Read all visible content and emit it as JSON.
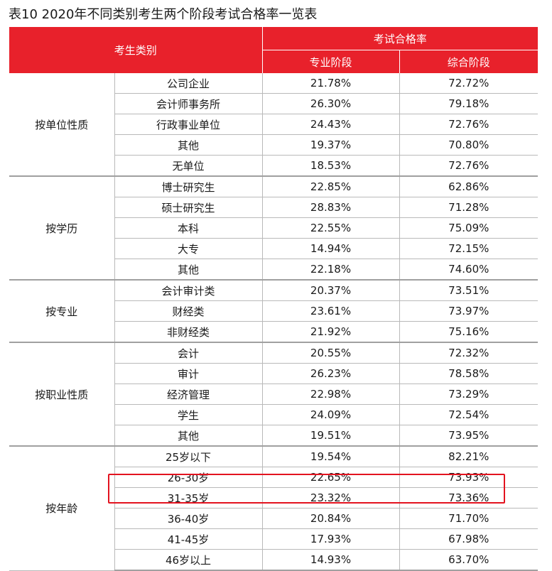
{
  "title": "表10  2020年不同类别考生两个阶段考试合格率一览表",
  "header": {
    "category": "考生类别",
    "pass_rate": "考试合格率",
    "stage1": "专业阶段",
    "stage2": "综合阶段"
  },
  "groups": [
    {
      "name": "按单位性质",
      "rows": [
        {
          "label": "公司企业",
          "stage1": "21.78%",
          "stage2": "72.72%"
        },
        {
          "label": "会计师事务所",
          "stage1": "26.30%",
          "stage2": "79.18%"
        },
        {
          "label": "行政事业单位",
          "stage1": "24.43%",
          "stage2": "72.76%"
        },
        {
          "label": "其他",
          "stage1": "19.37%",
          "stage2": "70.80%"
        },
        {
          "label": "无单位",
          "stage1": "18.53%",
          "stage2": "72.76%"
        }
      ]
    },
    {
      "name": "按学历",
      "rows": [
        {
          "label": "博士研究生",
          "stage1": "22.85%",
          "stage2": "62.86%"
        },
        {
          "label": "硕士研究生",
          "stage1": "28.83%",
          "stage2": "71.28%"
        },
        {
          "label": "本科",
          "stage1": "22.55%",
          "stage2": "75.09%"
        },
        {
          "label": "大专",
          "stage1": "14.94%",
          "stage2": "72.15%"
        },
        {
          "label": "其他",
          "stage1": "22.18%",
          "stage2": "74.60%"
        }
      ]
    },
    {
      "name": "按专业",
      "rows": [
        {
          "label": "会计审计类",
          "stage1": "20.37%",
          "stage2": "73.51%"
        },
        {
          "label": "财经类",
          "stage1": "23.61%",
          "stage2": "73.97%"
        },
        {
          "label": "非财经类",
          "stage1": "21.92%",
          "stage2": "75.16%"
        }
      ]
    },
    {
      "name": "按职业性质",
      "rows": [
        {
          "label": "会计",
          "stage1": "20.55%",
          "stage2": "72.32%"
        },
        {
          "label": "审计",
          "stage1": "26.23%",
          "stage2": "78.58%"
        },
        {
          "label": "经济管理",
          "stage1": "22.98%",
          "stage2": "73.29%"
        },
        {
          "label": "学生",
          "stage1": "24.09%",
          "stage2": "72.54%"
        },
        {
          "label": "其他",
          "stage1": "19.51%",
          "stage2": "73.95%"
        }
      ]
    },
    {
      "name": "按年龄",
      "rows": [
        {
          "label": "25岁以下",
          "stage1": "19.54%",
          "stage2": "82.21%"
        },
        {
          "label": "26-30岁",
          "stage1": "22.65%",
          "stage2": "73.93%"
        },
        {
          "label": "31-35岁",
          "stage1": "23.32%",
          "stage2": "73.36%"
        },
        {
          "label": "36-40岁",
          "stage1": "20.84%",
          "stage2": "71.70%"
        },
        {
          "label": "41-45岁",
          "stage1": "17.93%",
          "stage2": "67.98%"
        },
        {
          "label": "46岁以上",
          "stage1": "14.93%",
          "stage2": "63.70%"
        }
      ]
    }
  ],
  "highlight_color": "#e3131f",
  "header_color": "#e8212b"
}
